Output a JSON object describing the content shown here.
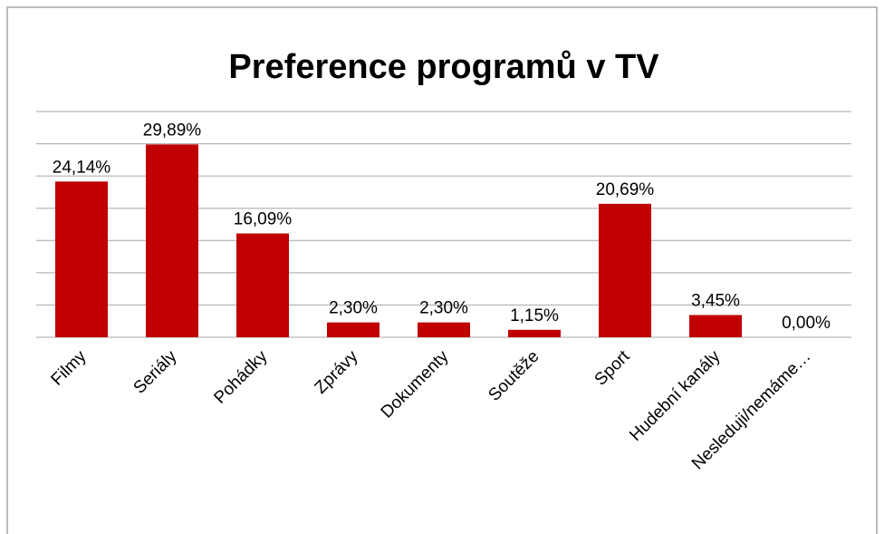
{
  "chart_data": {
    "type": "bar",
    "title": "Preference programů v TV",
    "categories": [
      "Filmy",
      "Seriály",
      "Pohádky",
      "Zprávy",
      "Dokumenty",
      "Soutěže",
      "Sport",
      "Hudební kanály",
      "Nesleduji/nemáme…"
    ],
    "values": [
      24.14,
      29.89,
      16.09,
      2.3,
      2.3,
      1.15,
      20.69,
      3.45,
      0.0
    ],
    "value_labels": [
      "24,14%",
      "29,89%",
      "16,09%",
      "2,30%",
      "2,30%",
      "1,15%",
      "20,69%",
      "3,45%",
      "0,00%"
    ],
    "color": "#c00000",
    "ylim": [
      0,
      35
    ],
    "yticks": [
      0,
      5,
      10,
      15,
      20,
      25,
      30,
      35
    ],
    "grid": true
  }
}
